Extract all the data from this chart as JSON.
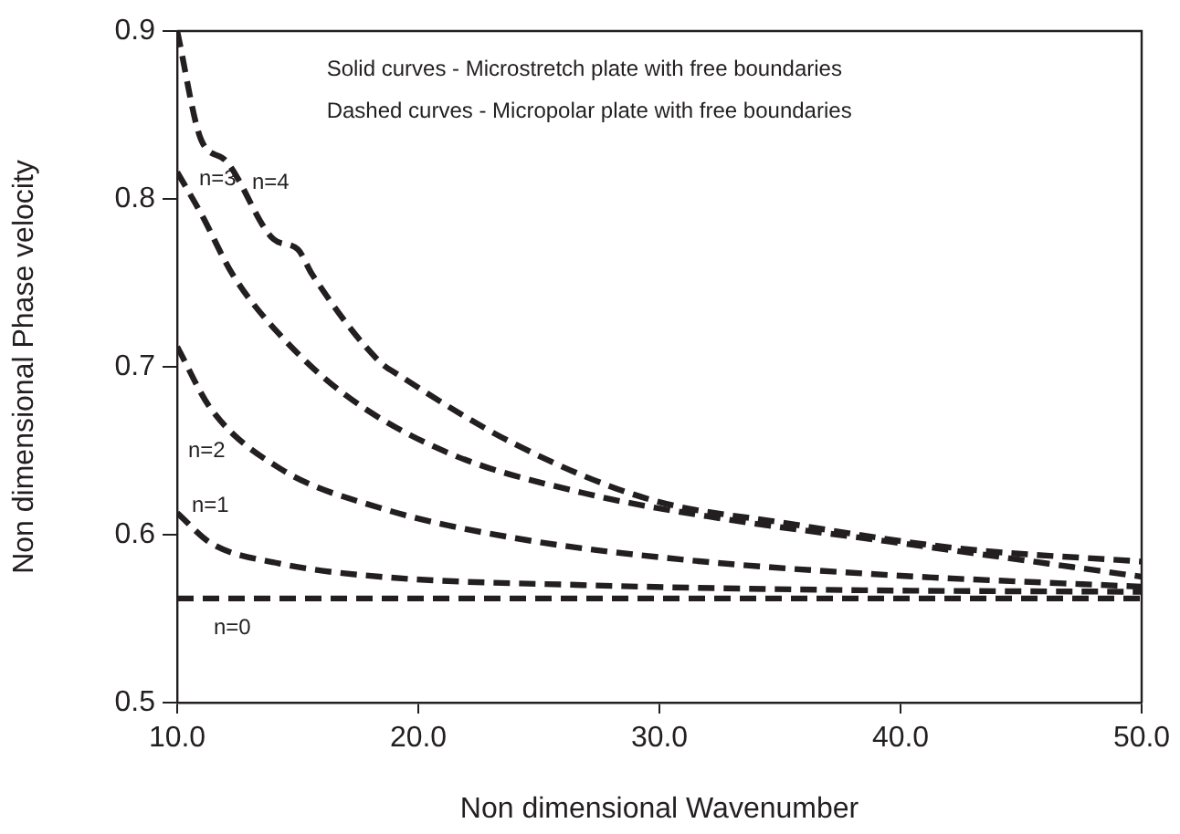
{
  "chart_data": {
    "type": "line",
    "xlabel": "Non dimensional Wavenumber",
    "ylabel": "Non dimensional Phase velocity",
    "xlim": [
      10,
      50
    ],
    "xticks": [
      {
        "value": 10,
        "label": "10.0"
      },
      {
        "value": 20,
        "label": "20.0"
      },
      {
        "value": 30,
        "label": "30.0"
      },
      {
        "value": 40,
        "label": "40.0"
      },
      {
        "value": 50,
        "label": "50.0"
      }
    ],
    "ylim": [
      0.5,
      0.9
    ],
    "yticks": [
      0.5,
      0.6,
      0.7,
      0.8,
      0.9
    ],
    "grid": false,
    "legend": false,
    "marker": "none",
    "annotations": [
      "Solid curves - Microstretch plate with free boundaries",
      "Dashed curves - Micropolar plate with free boundaries"
    ],
    "series": [
      {
        "name": "n=4",
        "color": "#231f20",
        "line_style": "dashed",
        "x": [
          10,
          11,
          12,
          14,
          15,
          15.6,
          18.4,
          19.2,
          24,
          29.6,
          35.2,
          42.3,
          50
        ],
        "values": [
          0.9,
          0.835,
          0.823,
          0.776,
          0.77,
          0.755,
          0.703,
          0.695,
          0.654,
          0.621,
          0.607,
          0.592,
          0.584
        ]
      },
      {
        "name": "n=3",
        "color": "#231f20",
        "line_style": "dashed",
        "x": [
          10,
          11,
          12.3,
          14.2,
          17,
          21.2,
          26.8,
          32.4,
          39.5,
          50
        ],
        "values": [
          0.816,
          0.791,
          0.755,
          0.72,
          0.683,
          0.649,
          0.625,
          0.61,
          0.596,
          0.575
        ]
      },
      {
        "name": "n=2",
        "color": "#231f20",
        "line_style": "dashed",
        "x": [
          10,
          11.4,
          14.2,
          18.4,
          24,
          31.1,
          39.5,
          50
        ],
        "values": [
          0.712,
          0.675,
          0.64,
          0.616,
          0.598,
          0.585,
          0.576,
          0.569
        ]
      },
      {
        "name": "n=1",
        "color": "#231f20",
        "line_style": "dashed",
        "x": [
          10,
          11.4,
          14.2,
          18.4,
          26.8,
          38,
          50
        ],
        "values": [
          0.613,
          0.595,
          0.583,
          0.575,
          0.57,
          0.567,
          0.566
        ]
      },
      {
        "name": "n=0",
        "color": "#231f20",
        "line_style": "dashed",
        "x": [
          10,
          50
        ],
        "values": [
          0.562,
          0.562
        ]
      }
    ]
  }
}
